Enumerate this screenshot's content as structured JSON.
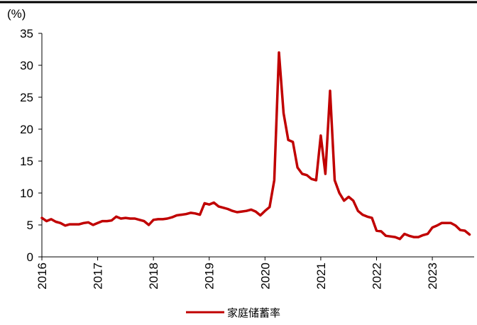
{
  "chart_data": {
    "type": "line",
    "title": "",
    "ylabel": "(%)",
    "xlabel": "",
    "ylim": [
      0,
      35
    ],
    "xlim": [
      2016.0,
      2023.75
    ],
    "y_ticks": [
      "0",
      "5",
      "10",
      "15",
      "20",
      "25",
      "30",
      "35"
    ],
    "x_ticks": [
      "2016",
      "2017",
      "2018",
      "2019",
      "2020",
      "2021",
      "2022",
      "2023"
    ],
    "grid": false,
    "legend_position": "bottom-center",
    "series": [
      {
        "name": "家庭储蓄率",
        "color": "#C00000",
        "x": [
          2016.0,
          2016.083,
          2016.167,
          2016.25,
          2016.333,
          2016.417,
          2016.5,
          2016.583,
          2016.667,
          2016.75,
          2016.833,
          2016.917,
          2017.0,
          2017.083,
          2017.167,
          2017.25,
          2017.333,
          2017.417,
          2017.5,
          2017.583,
          2017.667,
          2017.75,
          2017.833,
          2017.917,
          2018.0,
          2018.083,
          2018.167,
          2018.25,
          2018.333,
          2018.417,
          2018.5,
          2018.583,
          2018.667,
          2018.75,
          2018.833,
          2018.917,
          2019.0,
          2019.083,
          2019.167,
          2019.25,
          2019.333,
          2019.417,
          2019.5,
          2019.583,
          2019.667,
          2019.75,
          2019.833,
          2019.917,
          2020.0,
          2020.083,
          2020.167,
          2020.25,
          2020.333,
          2020.417,
          2020.5,
          2020.583,
          2020.667,
          2020.75,
          2020.833,
          2020.917,
          2021.0,
          2021.083,
          2021.167,
          2021.25,
          2021.333,
          2021.417,
          2021.5,
          2021.583,
          2021.667,
          2021.75,
          2021.833,
          2021.917,
          2022.0,
          2022.083,
          2022.167,
          2022.25,
          2022.333,
          2022.417,
          2022.5,
          2022.583,
          2022.667,
          2022.75,
          2022.833,
          2022.917,
          2023.0,
          2023.083,
          2023.167,
          2023.25,
          2023.333,
          2023.417,
          2023.5,
          2023.583,
          2023.667
        ],
        "y": [
          6.1,
          5.6,
          5.9,
          5.5,
          5.3,
          4.9,
          5.1,
          5.1,
          5.1,
          5.3,
          5.4,
          5.0,
          5.3,
          5.6,
          5.6,
          5.7,
          6.3,
          6.0,
          6.1,
          6.0,
          6.0,
          5.8,
          5.6,
          5.0,
          5.8,
          5.9,
          5.9,
          6.0,
          6.2,
          6.5,
          6.6,
          6.7,
          6.9,
          6.8,
          6.6,
          8.4,
          8.2,
          8.5,
          7.9,
          7.7,
          7.5,
          7.2,
          7.0,
          7.1,
          7.2,
          7.4,
          7.1,
          6.5,
          7.2,
          7.8,
          12.0,
          32.0,
          22.5,
          18.3,
          18.0,
          14.0,
          13.0,
          12.8,
          12.2,
          12.0,
          19.0,
          13.0,
          26.0,
          12.0,
          10.0,
          8.8,
          9.4,
          8.8,
          7.2,
          6.6,
          6.3,
          6.1,
          4.1,
          4.0,
          3.3,
          3.2,
          3.1,
          2.8,
          3.6,
          3.3,
          3.1,
          3.1,
          3.4,
          3.6,
          4.6,
          4.9,
          5.3,
          5.3,
          5.3,
          4.9,
          4.2,
          4.1,
          3.5
        ]
      }
    ]
  }
}
